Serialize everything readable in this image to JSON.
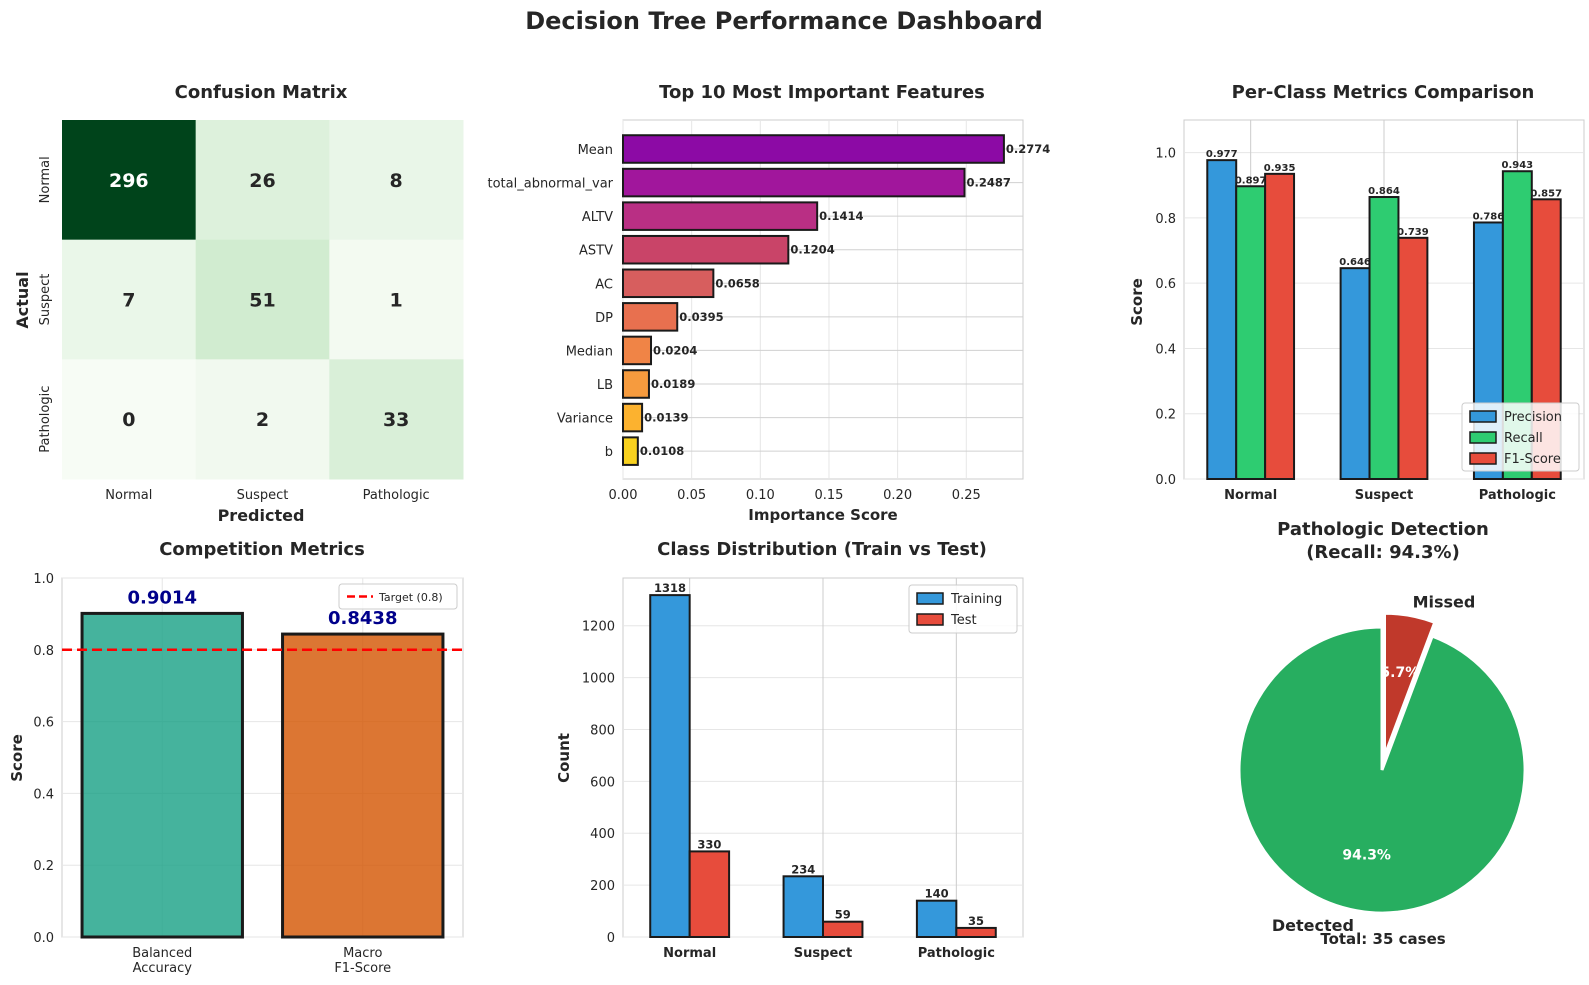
{
  "dashboard": {
    "title": "Decision Tree Performance Dashboard"
  },
  "chart_data": [
    {
      "id": "confusion",
      "type": "heatmap",
      "title": "Confusion Matrix",
      "xlabel": "Predicted",
      "ylabel": "Actual",
      "x_categories": [
        "Normal",
        "Suspect",
        "Pathologic"
      ],
      "y_categories": [
        "Normal",
        "Suspect",
        "Pathologic"
      ],
      "matrix": [
        [
          296,
          26,
          8
        ],
        [
          7,
          51,
          1
        ],
        [
          0,
          2,
          33
        ]
      ],
      "colormap": "Greens"
    },
    {
      "id": "features",
      "type": "bar",
      "orientation": "horizontal",
      "title": "Top 10 Most Important Features",
      "xlabel": "Importance Score",
      "categories": [
        "Mean",
        "total_abnormal_var",
        "ALTV",
        "ASTV",
        "AC",
        "DP",
        "Median",
        "LB",
        "Variance",
        "b"
      ],
      "values": [
        0.2774,
        0.2487,
        0.1414,
        0.1204,
        0.0658,
        0.0395,
        0.0204,
        0.0189,
        0.0139,
        0.0108
      ],
      "value_labels": [
        "0.2774",
        "0.2487",
        "0.1414",
        "0.1204",
        "0.0658",
        "0.0395",
        "0.0204",
        "0.0189",
        "0.0139",
        "0.0108"
      ],
      "colors": [
        "#8c0aa5",
        "#a1169c",
        "#b92f84",
        "#c94468",
        "#d75e5e",
        "#e8704f",
        "#f08446",
        "#f69b3e",
        "#fcb22f",
        "#f8d11f"
      ],
      "xticks": [
        "0.00",
        "0.05",
        "0.10",
        "0.15",
        "0.20",
        "0.25"
      ],
      "xlim": [
        0,
        0.2913
      ]
    },
    {
      "id": "perclass",
      "type": "bar",
      "title": "Per-Class Metrics Comparison",
      "ylabel": "Score",
      "categories": [
        "Normal",
        "Suspect",
        "Pathologic"
      ],
      "series": [
        {
          "name": "Precision",
          "color": "#3498db",
          "values": [
            0.977,
            0.646,
            0.786
          ],
          "labels": [
            "0.977",
            "0.646",
            "0.786"
          ]
        },
        {
          "name": "Recall",
          "color": "#2ecc71",
          "values": [
            0.897,
            0.864,
            0.943
          ],
          "labels": [
            "0.897",
            "0.864",
            "0.943"
          ]
        },
        {
          "name": "F1-Score",
          "color": "#e74c3c",
          "values": [
            0.935,
            0.739,
            0.857
          ],
          "labels": [
            "0.935",
            "0.739",
            "0.857"
          ]
        }
      ],
      "yticks": [
        "0.0",
        "0.2",
        "0.4",
        "0.6",
        "0.8",
        "1.0"
      ],
      "ylim": [
        0,
        1.1
      ],
      "legend": "lower-right"
    },
    {
      "id": "competition",
      "type": "bar",
      "title": "Competition Metrics",
      "ylabel": "Score",
      "categories": [
        "Balanced\nAccuracy",
        "Macro\nF1-Score"
      ],
      "values": [
        0.9014,
        0.8438
      ],
      "value_labels": [
        "0.9014",
        "0.8438"
      ],
      "colors": [
        "#16a085",
        "#d35400"
      ],
      "target": {
        "value": 0.8,
        "label": "Target (0.8)",
        "color": "#ff0000"
      },
      "yticks": [
        "0.0",
        "0.2",
        "0.4",
        "0.6",
        "0.8",
        "1.0"
      ],
      "ylim": [
        0,
        1.0
      ],
      "legend": "top-right"
    },
    {
      "id": "distribution",
      "type": "bar",
      "title": "Class Distribution (Train vs Test)",
      "ylabel": "Count",
      "categories": [
        "Normal",
        "Suspect",
        "Pathologic"
      ],
      "series": [
        {
          "name": "Training",
          "color": "#3498db",
          "values": [
            1318,
            234,
            140
          ],
          "labels": [
            "1318",
            "234",
            "140"
          ]
        },
        {
          "name": "Test",
          "color": "#e74c3c",
          "values": [
            330,
            59,
            35
          ],
          "labels": [
            "330",
            "59",
            "35"
          ]
        }
      ],
      "yticks": [
        "0",
        "200",
        "400",
        "600",
        "800",
        "1000",
        "1200"
      ],
      "ylim": [
        0,
        1384
      ],
      "legend": "top-right"
    },
    {
      "id": "pathologic",
      "type": "pie",
      "title": "Pathologic Detection\n(Recall: 94.3%)",
      "labels": [
        "Detected",
        "Missed"
      ],
      "values": [
        33,
        2
      ],
      "pct_labels": [
        "94.3%",
        "5.7%"
      ],
      "colors": [
        "#27ae60",
        "#c0392b"
      ],
      "exploded": "Missed",
      "footer": "Total: 35 cases"
    }
  ]
}
